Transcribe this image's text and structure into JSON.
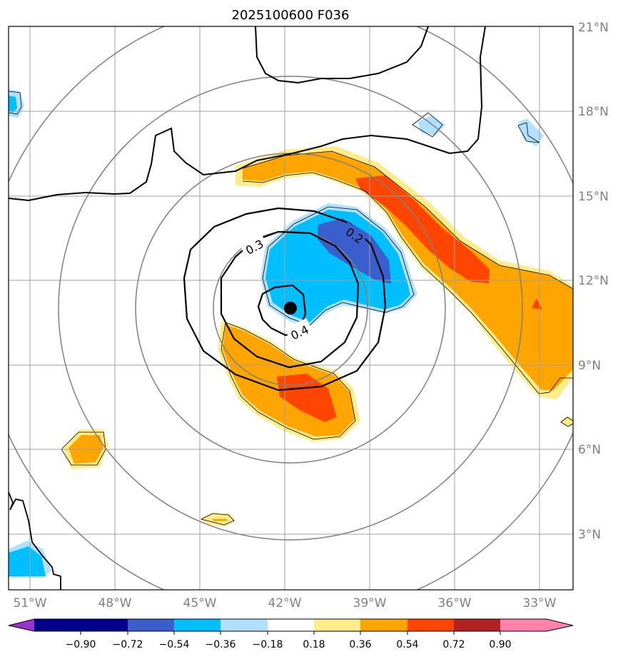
{
  "title": "2025100600 F036",
  "lat_labels": [
    "21°N",
    "18°N",
    "15°N",
    "12°N",
    "9°N",
    "6°N",
    "3°N"
  ],
  "lon_labels": [
    "51°W",
    "48°W",
    "45°W",
    "42°W",
    "39°W",
    "36°W",
    "33°W"
  ],
  "contour_labels": [
    "0.3",
    "0.2",
    "0.4"
  ],
  "colorbar": {
    "ticks": [
      "−0.90",
      "−0.72",
      "−0.54",
      "−0.36",
      "−0.18",
      "0.18",
      "0.36",
      "0.54",
      "0.72",
      "0.90"
    ],
    "colors": [
      "#9a32cd",
      "#00008b",
      "#3a5fcd",
      "#00bfff",
      "#b0e2ff",
      "#ffffff",
      "#ffec8b",
      "#ffa500",
      "#ff4500",
      "#b22222",
      "#ff82ab"
    ]
  },
  "colors": {
    "grid": "#a0a0a0",
    "range_rings": "#808080",
    "coast": "#000000",
    "center": "#000000"
  }
}
